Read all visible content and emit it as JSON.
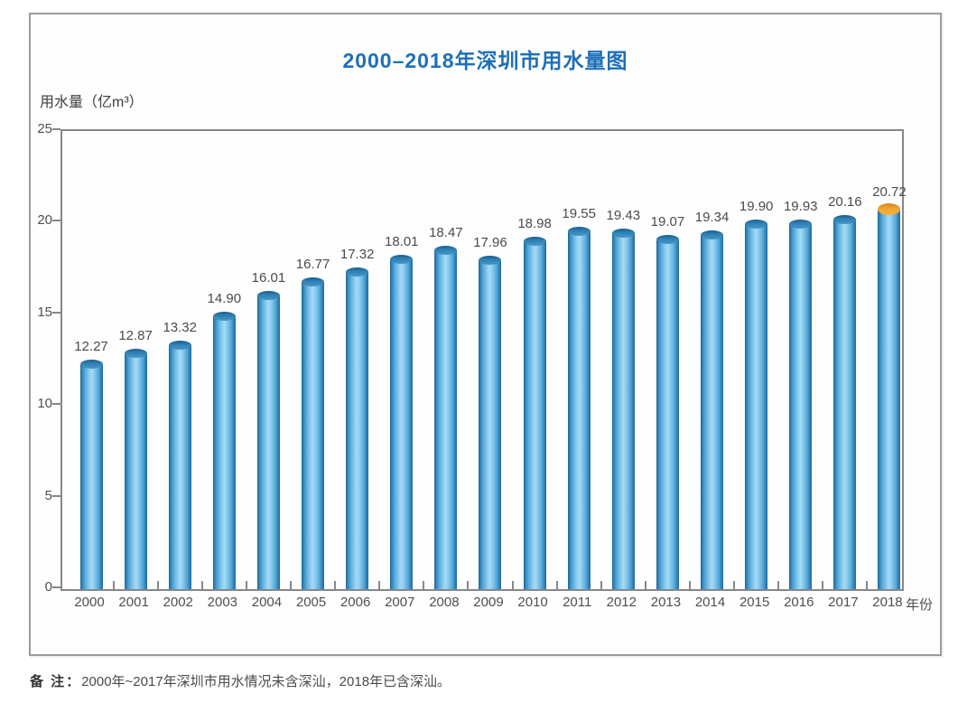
{
  "title": "2000–2018年深圳市用水量图",
  "y_axis_label": "用水量（亿m³）",
  "x_axis_unit": "年份",
  "note": {
    "label": "备 注：",
    "text": "2000年~2017年深圳市用水情况未含深汕，2018年已含深汕。"
  },
  "colors": {
    "title_blue": "#1e6fb8",
    "bar_edge_blue": "#2b7aae",
    "bar_highlight_blue": "#a3daf8",
    "bar_cap_blue": "#2e7fb2",
    "bar_cap_orange_2018": "#f0a52e",
    "axis_gray": "#87878b",
    "text_gray": "#4f4f4f"
  },
  "chart_data": {
    "type": "bar",
    "title": "2000–2018年深圳市用水量图",
    "xlabel": "年份",
    "ylabel": "用水量（亿m³）",
    "categories": [
      "2000",
      "2001",
      "2002",
      "2003",
      "2004",
      "2005",
      "2006",
      "2007",
      "2008",
      "2009",
      "2010",
      "2011",
      "2012",
      "2013",
      "2014",
      "2015",
      "2016",
      "2017",
      "2018"
    ],
    "values": [
      12.27,
      12.87,
      13.32,
      14.9,
      16.01,
      16.77,
      17.32,
      18.01,
      18.47,
      17.96,
      18.98,
      19.55,
      19.43,
      19.07,
      19.34,
      19.9,
      19.93,
      20.16,
      20.72
    ],
    "value_label_decimals": 2,
    "ylim": [
      0,
      25
    ],
    "yticks": [
      0,
      5,
      10,
      15,
      20,
      25
    ],
    "grid": false,
    "legend": null,
    "bar_style": "cylinder",
    "highlight_cap_index": 18,
    "highlight_cap_color": "orange",
    "note": "2000年~2017年深圳市用水情况未含深汕，2018年已含深汕。"
  }
}
